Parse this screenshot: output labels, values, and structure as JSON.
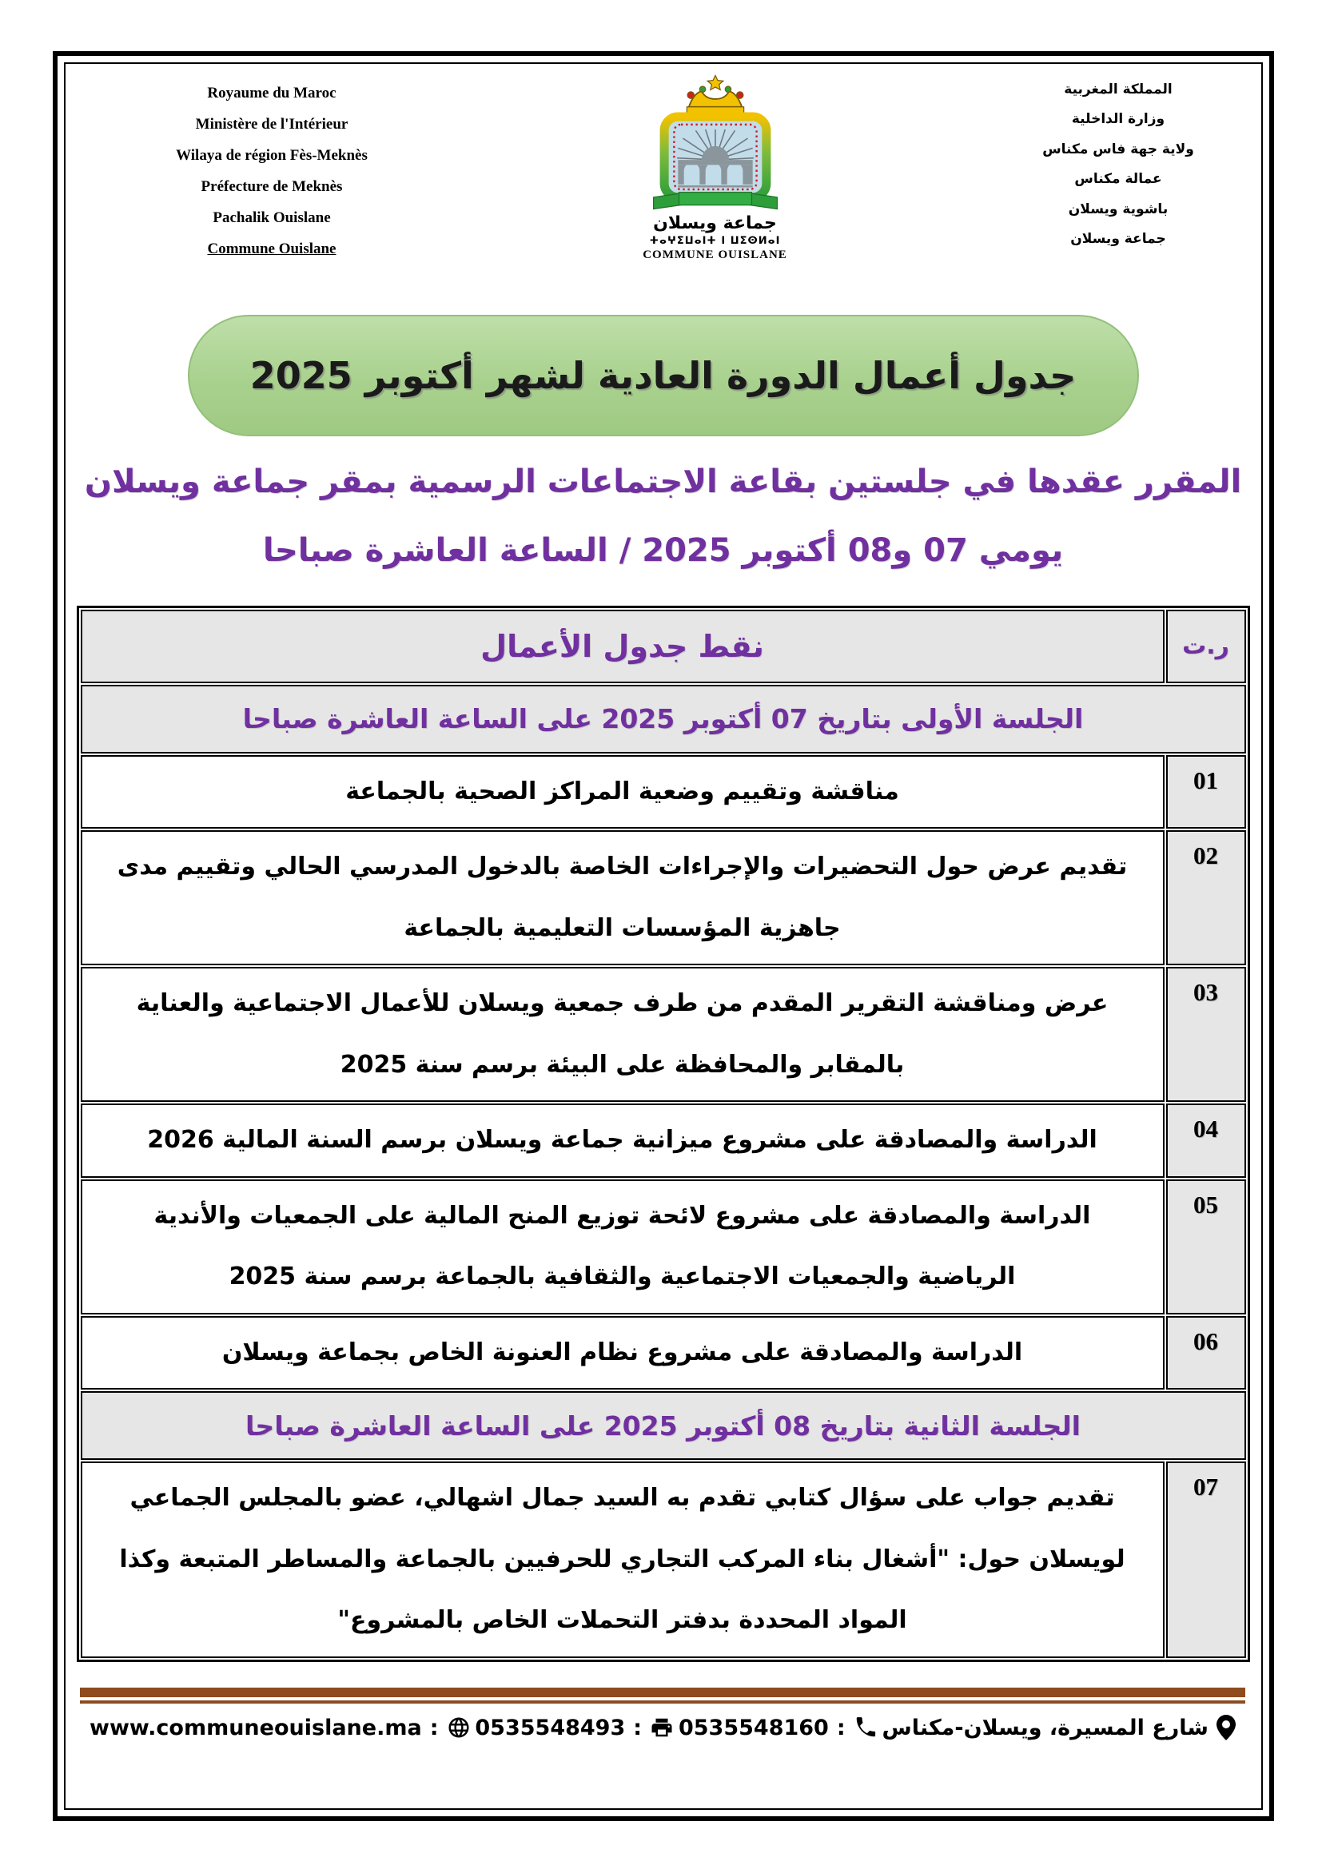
{
  "header": {
    "left_block": {
      "lines": [
        "Royaume du Maroc",
        "Ministère de l'Intérieur",
        "Wilaya de région Fès-Meknès",
        "Préfecture de Meknès",
        "Pachalik Ouislane",
        "Commune Ouislane"
      ]
    },
    "right_block": {
      "lines": [
        "المملكة المغربية",
        "وزارة الداخلية",
        "ولاية جهة فاس مكناس",
        "عمالة مكناس",
        "باشوية ويسلان",
        "جماعة ويسلان"
      ]
    },
    "logo": {
      "arabic_name": "جماعة ويسلان",
      "tifinagh_name": "ⵜⴰⵖⵉⵡⴰⵏⵜ ⵏ ⵡⵉⵙⵍⴰⵏ",
      "latin_name": "COMMUNE OUISLANE"
    }
  },
  "title": {
    "text": "جدول أعمال الدورة العادية لشهر أكتوبر 2025"
  },
  "subtitle": {
    "line1": "المقرر عقدها في جلستين بقاعة الاجتماعات الرسمية بمقر جماعة ويسلان",
    "line2": "يومي 07 و08 أكتوبر 2025 / الساعة العاشرة صباحا"
  },
  "table": {
    "header": {
      "items_col": "نقط جدول الأعمال",
      "num_col": "ر.ت"
    },
    "rows": [
      {
        "type": "session",
        "text": "الجلسة الأولى بتاريخ 07 أكتوبر 2025 على الساعة العاشرة صباحا"
      },
      {
        "type": "item",
        "num": "01",
        "text": "مناقشة وتقييم وضعية المراكز الصحية بالجماعة"
      },
      {
        "type": "item",
        "num": "02",
        "text": "تقديم عرض حول التحضيرات والإجراءات الخاصة بالدخول المدرسي الحالي وتقييم مدى جاهزية المؤسسات التعليمية بالجماعة"
      },
      {
        "type": "item",
        "num": "03",
        "text": "عرض ومناقشة التقرير المقدم من طرف جمعية ويسلان للأعمال الاجتماعية والعناية بالمقابر والمحافظة على البيئة برسم سنة 2025"
      },
      {
        "type": "item",
        "num": "04",
        "text": "الدراسة والمصادقة على مشروع ميزانية جماعة ويسلان برسم السنة المالية 2026"
      },
      {
        "type": "item",
        "num": "05",
        "text": "الدراسة والمصادقة على مشروع لائحة توزيع المنح المالية على الجمعيات والأندية الرياضية والجمعيات الاجتماعية والثقافية بالجماعة برسم سنة 2025"
      },
      {
        "type": "item",
        "num": "06",
        "text": "الدراسة والمصادقة على مشروع نظام العنونة الخاص بجماعة ويسلان"
      },
      {
        "type": "session",
        "text": "الجلسة الثانية بتاريخ 08 أكتوبر 2025 على الساعة العاشرة صباحا"
      },
      {
        "type": "item",
        "num": "07",
        "text": "تقديم جواب على سؤال كتابي تقدم به السيد جمال اشهالي، عضو بالمجلس الجماعي لويسلان حول: \"أشغال بناء المركب التجاري للحرفيين بالجماعة والمساطر المتبعة وكذا المواد المحددة بدفتر التحملات الخاص بالمشروع\""
      }
    ]
  },
  "footer": {
    "address": "شارع المسيرة، ويسلان-مكناس",
    "phone_label": ":",
    "phone": "0535548160",
    "fax": "0535548493",
    "website": "www.communeouislane.ma"
  },
  "colors": {
    "purple_accent": "#7030a0",
    "oval_green": "#a9d18e",
    "row_gray": "#e7e6e6",
    "footer_brown": "#8f4a1e"
  }
}
